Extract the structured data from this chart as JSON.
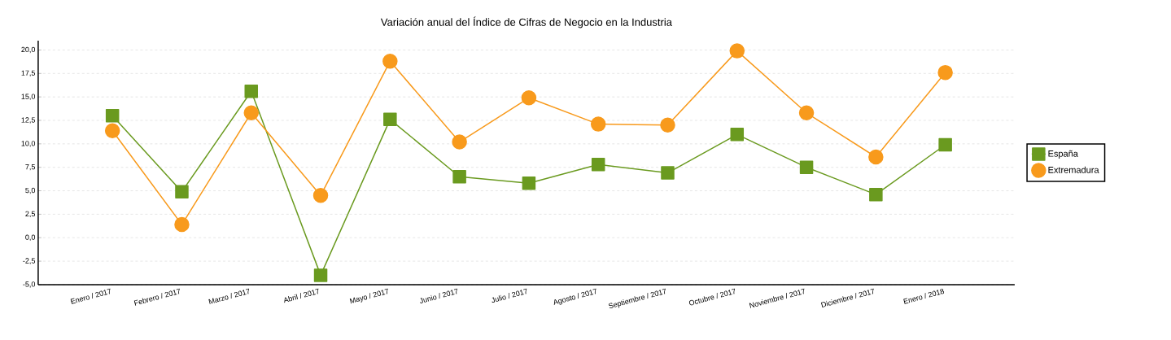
{
  "chart_data": {
    "type": "line",
    "title": "Variación anual del Índice de Cifras de Negocio en la Industria",
    "categories": [
      "Enero / 2017",
      "Febrero / 2017",
      "Marzo / 2017",
      "Abril / 2017",
      "Mayo / 2017",
      "Junio / 2017",
      "Julio / 2017",
      "Agosto / 2017",
      "Septiembre / 2017",
      "Octubre / 2017",
      "Noviembre / 2017",
      "Diciembre / 2017",
      "Enero / 2018"
    ],
    "series": [
      {
        "name": "España",
        "color": "#6a9a1f",
        "marker": "square",
        "values": [
          13.0,
          4.9,
          15.6,
          -4.0,
          12.6,
          6.5,
          5.8,
          7.8,
          6.9,
          11.0,
          7.5,
          4.6,
          9.9
        ]
      },
      {
        "name": "Extremadura",
        "color": "#f89a1c",
        "marker": "circle",
        "values": [
          11.4,
          1.4,
          13.3,
          4.5,
          18.8,
          10.2,
          14.9,
          12.1,
          12.0,
          19.9,
          13.3,
          8.6,
          17.6
        ]
      }
    ],
    "ylim": [
      -5,
      21
    ],
    "yticks": [
      {
        "value": -5,
        "label": "-5,0"
      },
      {
        "value": -2.5,
        "label": "-2,5"
      },
      {
        "value": 0,
        "label": "0,0"
      },
      {
        "value": 2.5,
        "label": "2,5"
      },
      {
        "value": 5,
        "label": "5,0"
      },
      {
        "value": 7.5,
        "label": "7,5"
      },
      {
        "value": 10,
        "label": "10,0"
      },
      {
        "value": 12.5,
        "label": "12,5"
      },
      {
        "value": 15,
        "label": "15,0"
      },
      {
        "value": 17.5,
        "label": "17,5"
      },
      {
        "value": 20,
        "label": "20,0"
      }
    ],
    "grid": "y",
    "legend": "right",
    "line_style": "solid"
  }
}
